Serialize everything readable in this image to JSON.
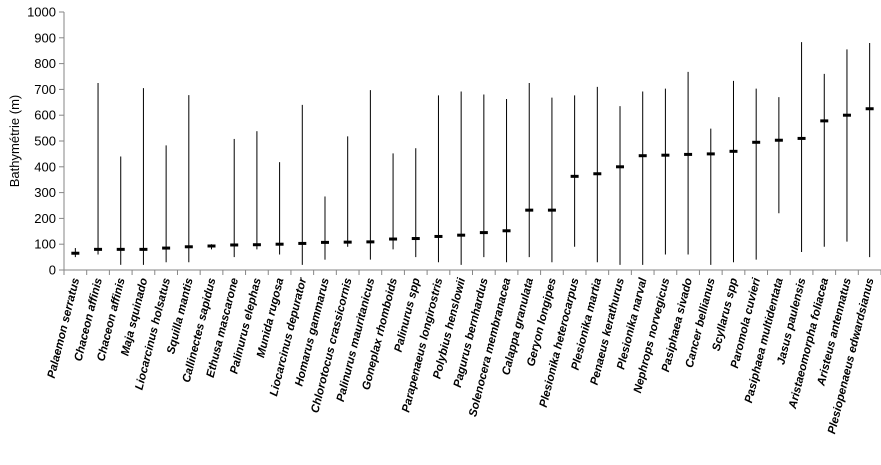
{
  "chart_data": {
    "type": "range",
    "title": "",
    "xlabel": "",
    "ylabel": "Bathymétrie (m)",
    "ylim": [
      0,
      1000
    ],
    "yticks": [
      0,
      100,
      200,
      300,
      400,
      500,
      600,
      700,
      800,
      900,
      1000
    ],
    "grid": false,
    "legend": "none",
    "categories": [
      "Palaemon serratus",
      "Chaceon affinis",
      "Chaceon affinis",
      "Maja squinado",
      "Liocarcinus holsatus",
      "Squilla mantis",
      "Callinectes sapidus",
      "Ethusa mascarone",
      "Palinurus elephas",
      "Munida rugosa",
      "Liocarcinus depurator",
      "Homarus gammarus",
      "Chlorotocus crassicornis",
      "Palinurus mauritanicus",
      "Goneplax rhomboids",
      "Palinurus spp",
      "Parapenaeus longirostris",
      "Polybius henslowii",
      "Pagurus bernhardus",
      "Solenocera membranacea",
      "Calappa granulata",
      "Geryon longipes",
      "Plesionika heterocarpus",
      "Plesionika martia",
      "Penaeus kerathurus",
      "Plesionika narval",
      "Nephrops norvegicus",
      "Pasiphaea sivado",
      "Cancer bellianus",
      "Scyllarus spp",
      "Paromola cuvieri",
      "Pasiphaea multidentata",
      "Jasus paulensis",
      "Aristaeomorpha foliacea",
      "Aristeus antennatus",
      "Plesiopenaeus edwardsianus"
    ],
    "series": [
      {
        "values": [
          65,
          80,
          80,
          80,
          85,
          90,
          93,
          97,
          98,
          100,
          103,
          107,
          108,
          109,
          120,
          122,
          130,
          135,
          145,
          152,
          232,
          232,
          363,
          373,
          400,
          443,
          445,
          448,
          450,
          460,
          495,
          503,
          510,
          578,
          600,
          625
        ]
      },
      {
        "values": [
          50,
          60,
          20,
          20,
          30,
          30,
          80,
          50,
          80,
          60,
          20,
          40,
          90,
          40,
          80,
          50,
          30,
          20,
          50,
          30,
          50,
          30,
          90,
          30,
          20,
          20,
          60,
          60,
          20,
          30,
          40,
          220,
          70,
          90,
          110,
          50
        ]
      },
      {
        "values": [
          85,
          725,
          440,
          705,
          483,
          678,
          100,
          508,
          538,
          418,
          640,
          285,
          518,
          697,
          452,
          472,
          677,
          692,
          680,
          663,
          725,
          668,
          677,
          710,
          635,
          692,
          703,
          768,
          548,
          733,
          703,
          670,
          883,
          760,
          855,
          880
        ]
      }
    ],
    "line_color": "#000000",
    "axis_color": "#868686"
  }
}
